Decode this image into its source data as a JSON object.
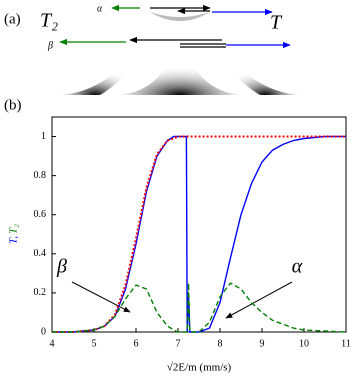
{
  "diagram": {
    "panel": "(a)",
    "labels": [
      "T₂",
      "α",
      "β",
      "T"
    ]
  },
  "chart_data": {
    "type": "line",
    "panel": "(b)",
    "xlabel": "√2E/m (mm/s)",
    "ylabel": [
      "T,",
      "T₂"
    ],
    "x": [
      4,
      4.5,
      5,
      5.25,
      5.5,
      5.75,
      6,
      6.25,
      6.5,
      6.75,
      6.9,
      7,
      7.15,
      7.2,
      7.22,
      7.25,
      7.28,
      7.5,
      7.75,
      8,
      8.25,
      8.5,
      8.75,
      9,
      9.25,
      9.5,
      9.75,
      10,
      10.5,
      11
    ],
    "series": [
      {
        "color": "#0000ff",
        "style": "solid",
        "values": [
          0,
          0,
          0.01,
          0.03,
          0.08,
          0.22,
          0.45,
          0.72,
          0.9,
          0.98,
          1,
          1,
          1,
          1,
          0,
          0.2,
          0,
          0,
          0.02,
          0.15,
          0.38,
          0.6,
          0.76,
          0.87,
          0.93,
          0.96,
          0.98,
          0.99,
          1,
          1
        ]
      },
      {
        "color": "#ff0000",
        "style": "dotted",
        "values": [
          0,
          0,
          0.01,
          0.03,
          0.09,
          0.24,
          0.48,
          0.74,
          0.91,
          0.98,
          0.99,
          1,
          1,
          1,
          1,
          1,
          1,
          1,
          1,
          1,
          1,
          1,
          1,
          1,
          1,
          1,
          1,
          1,
          1,
          1
        ]
      },
      {
        "color": "#008000",
        "style": "dashed",
        "values": [
          0,
          0,
          0.01,
          0.03,
          0.08,
          0.17,
          0.24,
          0.22,
          0.1,
          0.03,
          0.01,
          0,
          0,
          0,
          0,
          0.25,
          0,
          0,
          0.05,
          0.18,
          0.25,
          0.22,
          0.15,
          0.1,
          0.06,
          0.04,
          0.02,
          0.01,
          0.005,
          0
        ]
      }
    ],
    "annotations": [
      "β",
      "α"
    ],
    "xlim": [
      4,
      11
    ],
    "ylim": [
      0,
      1.1
    ],
    "xticks": [
      4,
      5,
      6,
      7,
      8,
      9,
      10,
      11
    ],
    "yticks": [
      0,
      0.2,
      0.4,
      0.6,
      0.8,
      1
    ]
  }
}
